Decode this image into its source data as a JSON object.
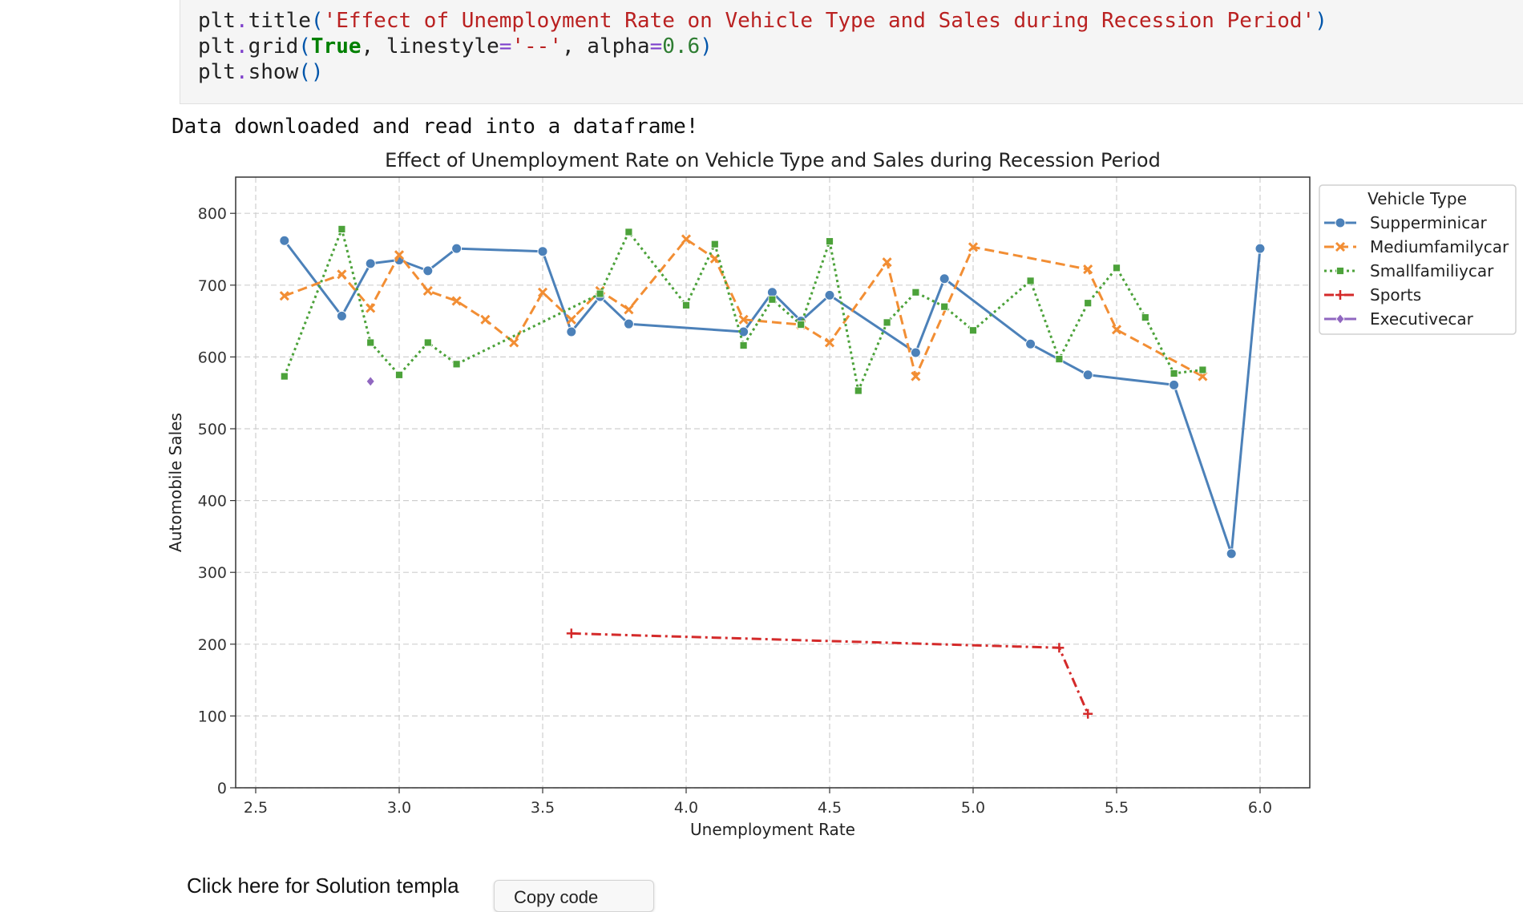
{
  "code_cell": {
    "lines": [
      {
        "parts": [
          [
            "plt",
            ""
          ],
          [
            ".",
            "tok-op"
          ],
          [
            "title",
            ""
          ],
          [
            "(",
            "tok-paren"
          ],
          [
            "'Effect of Unemployment Rate on Vehicle Type and Sales during Recession Period'",
            "tok-str"
          ],
          [
            ")",
            "tok-paren"
          ]
        ]
      },
      {
        "parts": [
          [
            "plt",
            ""
          ],
          [
            ".",
            "tok-op"
          ],
          [
            "grid",
            ""
          ],
          [
            "(",
            "tok-paren"
          ],
          [
            "True",
            "tok-kw"
          ],
          [
            ", linestyle",
            ""
          ],
          [
            "=",
            "tok-op"
          ],
          [
            "'--'",
            "tok-str"
          ],
          [
            ", alpha",
            ""
          ],
          [
            "=",
            "tok-op"
          ],
          [
            "0.6",
            "tok-num"
          ],
          [
            ")",
            "tok-paren"
          ]
        ]
      },
      {
        "parts": [
          [
            "plt",
            ""
          ],
          [
            ".",
            "tok-op"
          ],
          [
            "show",
            ""
          ],
          [
            "()",
            "tok-paren"
          ]
        ]
      }
    ]
  },
  "output": {
    "message": "Data downloaded and read into a dataframe!"
  },
  "chart_data": {
    "type": "line",
    "title": "Effect of Unemployment Rate on Vehicle Type and Sales during Recession Period",
    "xlabel": "Unemployment Rate",
    "ylabel": "Automobile Sales",
    "xlim": [
      2.43,
      6.17
    ],
    "ylim": [
      0,
      850
    ],
    "xticks": [
      "2.5",
      "3.0",
      "3.5",
      "4.0",
      "4.5",
      "5.0",
      "5.5",
      "6.0"
    ],
    "yticks": [
      "0",
      "100",
      "200",
      "300",
      "400",
      "500",
      "600",
      "700",
      "800"
    ],
    "grid": true,
    "legend": {
      "title": "Vehicle Type",
      "placement": "outside-right"
    },
    "series": [
      {
        "name": "Supperminicar",
        "color": "#4c81b9",
        "marker": "circle",
        "dash": "solid",
        "points": [
          [
            2.6,
            762
          ],
          [
            2.8,
            657
          ],
          [
            2.9,
            730
          ],
          [
            3.0,
            735
          ],
          [
            3.1,
            720
          ],
          [
            3.2,
            751
          ],
          [
            3.5,
            747
          ],
          [
            3.6,
            635
          ],
          [
            3.7,
            684
          ],
          [
            3.8,
            646
          ],
          [
            4.2,
            635
          ],
          [
            4.3,
            690
          ],
          [
            4.4,
            650
          ],
          [
            4.5,
            686
          ],
          [
            4.8,
            606
          ],
          [
            4.9,
            709
          ],
          [
            5.2,
            618
          ],
          [
            5.4,
            575
          ],
          [
            5.7,
            561
          ],
          [
            5.9,
            326
          ],
          [
            6.0,
            751
          ]
        ]
      },
      {
        "name": "Mediumfamilycar",
        "color": "#f28e34",
        "marker": "x",
        "dash": "dashed",
        "points": [
          [
            2.6,
            685
          ],
          [
            2.8,
            715
          ],
          [
            2.9,
            668
          ],
          [
            3.0,
            742
          ],
          [
            3.1,
            692
          ],
          [
            3.2,
            678
          ],
          [
            3.3,
            652
          ],
          [
            3.4,
            620
          ],
          [
            3.5,
            690
          ],
          [
            3.6,
            652
          ],
          [
            3.7,
            692
          ],
          [
            3.8,
            666
          ],
          [
            4.0,
            764
          ],
          [
            4.1,
            737
          ],
          [
            4.2,
            652
          ],
          [
            4.4,
            645
          ],
          [
            4.5,
            620
          ],
          [
            4.7,
            732
          ],
          [
            4.8,
            573
          ],
          [
            5.0,
            753
          ],
          [
            5.4,
            722
          ],
          [
            5.5,
            638
          ],
          [
            5.8,
            573
          ]
        ]
      },
      {
        "name": "Smallfamiliycar",
        "color": "#4ca23a",
        "marker": "square",
        "dash": "dotted",
        "points": [
          [
            2.6,
            573
          ],
          [
            2.8,
            778
          ],
          [
            2.9,
            620
          ],
          [
            3.0,
            575
          ],
          [
            3.1,
            620
          ],
          [
            3.2,
            590
          ],
          [
            3.7,
            688
          ],
          [
            3.8,
            774
          ],
          [
            4.0,
            672
          ],
          [
            4.1,
            757
          ],
          [
            4.2,
            616
          ],
          [
            4.3,
            680
          ],
          [
            4.4,
            645
          ],
          [
            4.5,
            761
          ],
          [
            4.6,
            553
          ],
          [
            4.7,
            648
          ],
          [
            4.8,
            690
          ],
          [
            4.9,
            670
          ],
          [
            5.0,
            637
          ],
          [
            5.2,
            706
          ],
          [
            5.3,
            597
          ],
          [
            5.4,
            675
          ],
          [
            5.5,
            724
          ],
          [
            5.6,
            655
          ],
          [
            5.7,
            577
          ],
          [
            5.8,
            582
          ]
        ]
      },
      {
        "name": "Sports",
        "color": "#d42a2a",
        "marker": "plus",
        "dash": "dashdot",
        "points": [
          [
            3.6,
            215
          ],
          [
            5.3,
            195
          ],
          [
            5.4,
            103
          ]
        ]
      },
      {
        "name": "Executivecar",
        "color": "#9067c0",
        "marker": "diamond",
        "dash": "solid",
        "points": [
          [
            2.9,
            566
          ]
        ]
      }
    ]
  },
  "footer": {
    "solution_text": "Click here for Solution templa",
    "copy_button": "Copy code"
  }
}
